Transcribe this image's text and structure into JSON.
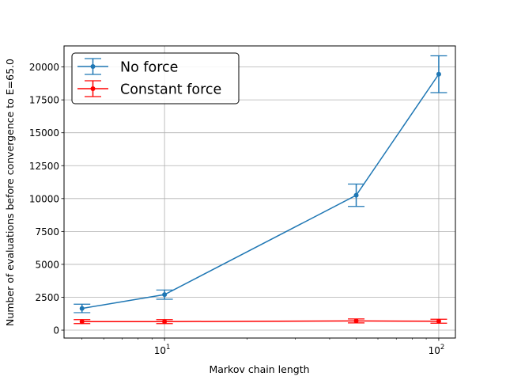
{
  "chart_data": {
    "type": "line",
    "title": "",
    "xlabel": "Markov chain length",
    "ylabel": "Number of evaluations before convergence to E=65.0",
    "xscale": "log",
    "xlim": [
      4.3,
      115
    ],
    "ylim": [
      -600,
      21600
    ],
    "x_major_ticks": [
      {
        "value": 10,
        "base": "10",
        "exp": "1"
      },
      {
        "value": 100,
        "base": "10",
        "exp": "2"
      }
    ],
    "x_minor_ticks": [
      5,
      6,
      7,
      8,
      9,
      20,
      30,
      40,
      50,
      60,
      70,
      80,
      90
    ],
    "y_ticks": [
      0,
      2500,
      5000,
      7500,
      10000,
      12500,
      15000,
      17500,
      20000
    ],
    "y_tick_labels": [
      "0",
      "2500",
      "5000",
      "7500",
      "10000",
      "12500",
      "15000",
      "17500",
      "20000"
    ],
    "grid": true,
    "legend_position": "top-left",
    "series": [
      {
        "name": "No force",
        "color": "#1f77b4",
        "x": [
          5,
          10,
          50,
          100
        ],
        "y": [
          1650,
          2700,
          10250,
          19450
        ],
        "err": [
          320,
          350,
          850,
          1400
        ]
      },
      {
        "name": "Constant force",
        "color": "#ff0000",
        "x": [
          5,
          10,
          50,
          100
        ],
        "y": [
          650,
          650,
          700,
          680
        ],
        "err": [
          150,
          150,
          150,
          150
        ]
      }
    ]
  }
}
